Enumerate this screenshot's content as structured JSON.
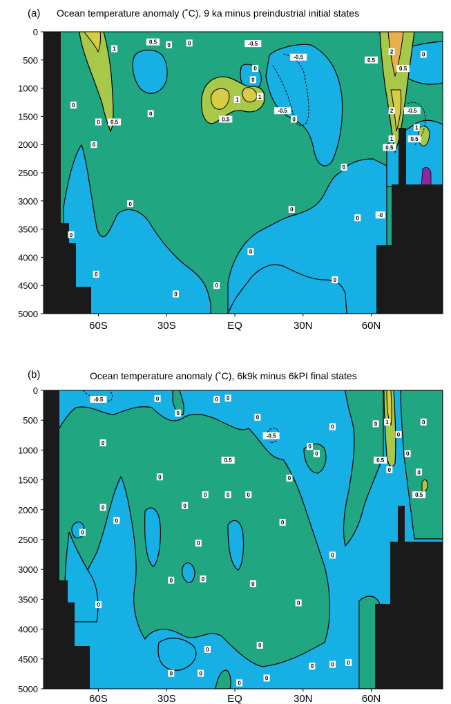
{
  "chart_data": [
    {
      "type": "contour",
      "panel_label": "(a)",
      "title": "Ocean temperature anomaly (˚C), 9 ka minus preindustrial initial states",
      "y_ticks": [
        0,
        500,
        1000,
        1500,
        2000,
        2500,
        3000,
        3500,
        4000,
        4500,
        5000
      ],
      "y_tick_labels": [
        "0",
        "500",
        "1000",
        "1500",
        "2000",
        "2500",
        "3000",
        "3500",
        "4000",
        "4500",
        "5000"
      ],
      "x_tick_labels": [
        "60S",
        "30S",
        "EQ",
        "30N",
        "60N"
      ],
      "x_tick_values": [
        -60,
        -30,
        0,
        30,
        60
      ],
      "ylim": [
        0,
        5000
      ],
      "colors": {
        "negative": "#16b0e4",
        "zero_to_half": "#21a682",
        "half_to_one": "#a8c84a",
        "one_to_two": "#d6cc45",
        "above_two": "#e8b04a",
        "strong_negative": "#8a2aa0",
        "land": "#1a1a1a"
      },
      "contour_labels": [
        {
          "text": "0.5",
          "lat": -36,
          "depth": 180
        },
        {
          "text": "0",
          "lat": -29,
          "depth": 230
        },
        {
          "text": "0",
          "lat": -20,
          "depth": 200
        },
        {
          "text": "-0.5",
          "lat": 8,
          "depth": 210
        },
        {
          "text": "0",
          "lat": 9,
          "depth": 650
        },
        {
          "text": "-0.5",
          "lat": 28,
          "depth": 450
        },
        {
          "text": "1",
          "lat": -53,
          "depth": 300
        },
        {
          "text": "0.5",
          "lat": -53,
          "depth": 1600
        },
        {
          "text": "0",
          "lat": -60,
          "depth": 1600
        },
        {
          "text": "0",
          "lat": -71,
          "depth": 1300
        },
        {
          "text": "0",
          "lat": -37,
          "depth": 1450
        },
        {
          "text": "1",
          "lat": 1,
          "depth": 1200
        },
        {
          "text": "0.5",
          "lat": -4,
          "depth": 1550
        },
        {
          "text": "1",
          "lat": 11,
          "depth": 1150
        },
        {
          "text": "0",
          "lat": 8,
          "depth": 850
        },
        {
          "text": "-0.5",
          "lat": 21,
          "depth": 1400
        },
        {
          "text": "0",
          "lat": 26,
          "depth": 1550
        },
        {
          "text": "0.5",
          "lat": 60,
          "depth": 500
        },
        {
          "text": "2",
          "lat": 69,
          "depth": 350
        },
        {
          "text": "0.5",
          "lat": 74,
          "depth": 650
        },
        {
          "text": "0",
          "lat": 83,
          "depth": 400
        },
        {
          "text": "-0.5",
          "lat": 78,
          "depth": 1400
        },
        {
          "text": "2",
          "lat": 69,
          "depth": 1400
        },
        {
          "text": "1",
          "lat": 69,
          "depth": 1900
        },
        {
          "text": "0.5",
          "lat": 79,
          "depth": 1900
        },
        {
          "text": "1",
          "lat": 80,
          "depth": 1700
        },
        {
          "text": "0.5",
          "lat": 68,
          "depth": 2050
        },
        {
          "text": "0",
          "lat": -62,
          "depth": 2000
        },
        {
          "text": "0",
          "lat": 48,
          "depth": 2400
        },
        {
          "text": "0",
          "lat": -46,
          "depth": 3050
        },
        {
          "text": "0",
          "lat": 25,
          "depth": 3150
        },
        {
          "text": "0",
          "lat": 54,
          "depth": 3300
        },
        {
          "text": "-0",
          "lat": 64,
          "depth": 3250
        },
        {
          "text": "0",
          "lat": -72,
          "depth": 3600
        },
        {
          "text": "0",
          "lat": 7,
          "depth": 3900
        },
        {
          "text": "0",
          "lat": 44,
          "depth": 4400
        },
        {
          "text": "0",
          "lat": -61,
          "depth": 4300
        },
        {
          "text": "0",
          "lat": -26,
          "depth": 4650
        },
        {
          "text": "0",
          "lat": -8,
          "depth": 4500
        }
      ]
    },
    {
      "type": "contour",
      "panel_label": "(b)",
      "title": "Ocean temperature anomaly (˚C), 6k9k minus 6kPI final states",
      "y_ticks": [
        0,
        500,
        1000,
        1500,
        2000,
        2500,
        3000,
        3500,
        4000,
        4500,
        5000
      ],
      "y_tick_labels": [
        "0",
        "500",
        "1000",
        "1500",
        "2000",
        "2500",
        "3000",
        "3500",
        "4000",
        "4500",
        "5000"
      ],
      "x_tick_labels": [
        "60S",
        "30S",
        "EQ",
        "30N",
        "60N"
      ],
      "x_tick_values": [
        -60,
        -30,
        0,
        30,
        60
      ],
      "ylim": [
        0,
        5000
      ],
      "contour_labels": [
        {
          "text": "-0.5",
          "lat": -60,
          "depth": 150
        },
        {
          "text": "0",
          "lat": -34,
          "depth": 140
        },
        {
          "text": "0",
          "lat": -8,
          "depth": 150
        },
        {
          "text": "0",
          "lat": -3,
          "depth": 130
        },
        {
          "text": "0",
          "lat": -25,
          "depth": 380
        },
        {
          "text": "0",
          "lat": 10,
          "depth": 450
        },
        {
          "text": "-0.5",
          "lat": 16,
          "depth": 760
        },
        {
          "text": "0",
          "lat": 43,
          "depth": 610
        },
        {
          "text": "0",
          "lat": 33,
          "depth": 940
        },
        {
          "text": "0",
          "lat": 36,
          "depth": 1060
        },
        {
          "text": "0",
          "lat": 62,
          "depth": 560
        },
        {
          "text": "1",
          "lat": 67,
          "depth": 530
        },
        {
          "text": "0",
          "lat": 72,
          "depth": 740
        },
        {
          "text": "0",
          "lat": 83,
          "depth": 530
        },
        {
          "text": "0",
          "lat": 76,
          "depth": 1060
        },
        {
          "text": "0",
          "lat": -58,
          "depth": 880
        },
        {
          "text": "0.5",
          "lat": -3,
          "depth": 1170
        },
        {
          "text": "0.5",
          "lat": 64,
          "depth": 1170
        },
        {
          "text": "0",
          "lat": 68,
          "depth": 1330
        },
        {
          "text": "0",
          "lat": 81,
          "depth": 1370
        },
        {
          "text": "0",
          "lat": 24,
          "depth": 1470
        },
        {
          "text": "0",
          "lat": -33,
          "depth": 1450
        },
        {
          "text": "0",
          "lat": -13,
          "depth": 1750
        },
        {
          "text": "0",
          "lat": -3,
          "depth": 1750
        },
        {
          "text": "0",
          "lat": 6,
          "depth": 1750
        },
        {
          "text": "0.5",
          "lat": 81,
          "depth": 1750
        },
        {
          "text": "0",
          "lat": -58,
          "depth": 1960
        },
        {
          "text": "0",
          "lat": -22,
          "depth": 1930
        },
        {
          "text": "0",
          "lat": 21,
          "depth": 2210
        },
        {
          "text": "0",
          "lat": -52,
          "depth": 2180
        },
        {
          "text": "0",
          "lat": -67,
          "depth": 2380
        },
        {
          "text": "0",
          "lat": -16,
          "depth": 2560
        },
        {
          "text": "0",
          "lat": 43,
          "depth": 2760
        },
        {
          "text": "0",
          "lat": -28,
          "depth": 3180
        },
        {
          "text": "0",
          "lat": -14,
          "depth": 3160
        },
        {
          "text": "0",
          "lat": 8,
          "depth": 3240
        },
        {
          "text": "0",
          "lat": 28,
          "depth": 3560
        },
        {
          "text": "0",
          "lat": -60,
          "depth": 3590
        },
        {
          "text": "0",
          "lat": -12,
          "depth": 4340
        },
        {
          "text": "0",
          "lat": 11,
          "depth": 4270
        },
        {
          "text": "0",
          "lat": -28,
          "depth": 4740
        },
        {
          "text": "0",
          "lat": -15,
          "depth": 4740
        },
        {
          "text": "0",
          "lat": 14,
          "depth": 4820
        },
        {
          "text": "0",
          "lat": 34,
          "depth": 4620
        },
        {
          "text": "0",
          "lat": 43,
          "depth": 4590
        },
        {
          "text": "0",
          "lat": 50,
          "depth": 4560
        },
        {
          "text": "0",
          "lat": 2,
          "depth": 4900
        }
      ]
    }
  ]
}
